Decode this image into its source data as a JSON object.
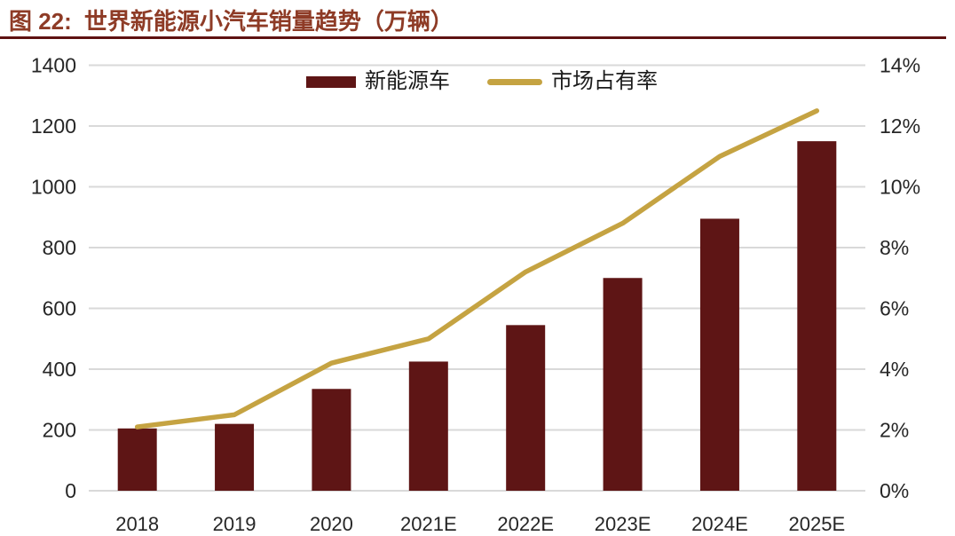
{
  "figure": {
    "label": "图 22:",
    "title": "世界新能源小汽车销量趋势（万辆）"
  },
  "colors": {
    "title_text": "#8E3B26",
    "divider": "#5E1111",
    "grid": "#D9D9D9",
    "axis_text": "#262626",
    "bar": "#5E1515",
    "line": "#C5A342"
  },
  "chart_data": {
    "type": "bar",
    "subtype": "bar+line-combo",
    "title": "世界新能源小汽车销量趋势（万辆）",
    "categories": [
      "2018",
      "2019",
      "2020",
      "2021E",
      "2022E",
      "2023E",
      "2024E",
      "2025E"
    ],
    "series": [
      {
        "name": "新能源车",
        "type": "bar",
        "axis": "left",
        "color": "#5E1515",
        "values": [
          205,
          220,
          335,
          425,
          545,
          700,
          895,
          1150
        ]
      },
      {
        "name": "市场占有率",
        "type": "line",
        "axis": "right",
        "color": "#C5A342",
        "values": [
          2.1,
          2.5,
          4.2,
          5.0,
          7.2,
          8.8,
          11.0,
          12.5
        ]
      }
    ],
    "left_axis": {
      "min": 0,
      "max": 1400,
      "step": 200,
      "labels": [
        "0",
        "200",
        "400",
        "600",
        "800",
        "1000",
        "1200",
        "1400"
      ]
    },
    "right_axis": {
      "min": 0,
      "max": 14,
      "step": 2,
      "labels": [
        "0%",
        "2%",
        "4%",
        "6%",
        "8%",
        "10%",
        "12%",
        "14%"
      ]
    },
    "legend": {
      "position": "top-center",
      "items": [
        "新能源车",
        "市场占有率"
      ]
    },
    "grid": true,
    "xlabel": "",
    "ylabel_left": "",
    "ylabel_right": ""
  }
}
